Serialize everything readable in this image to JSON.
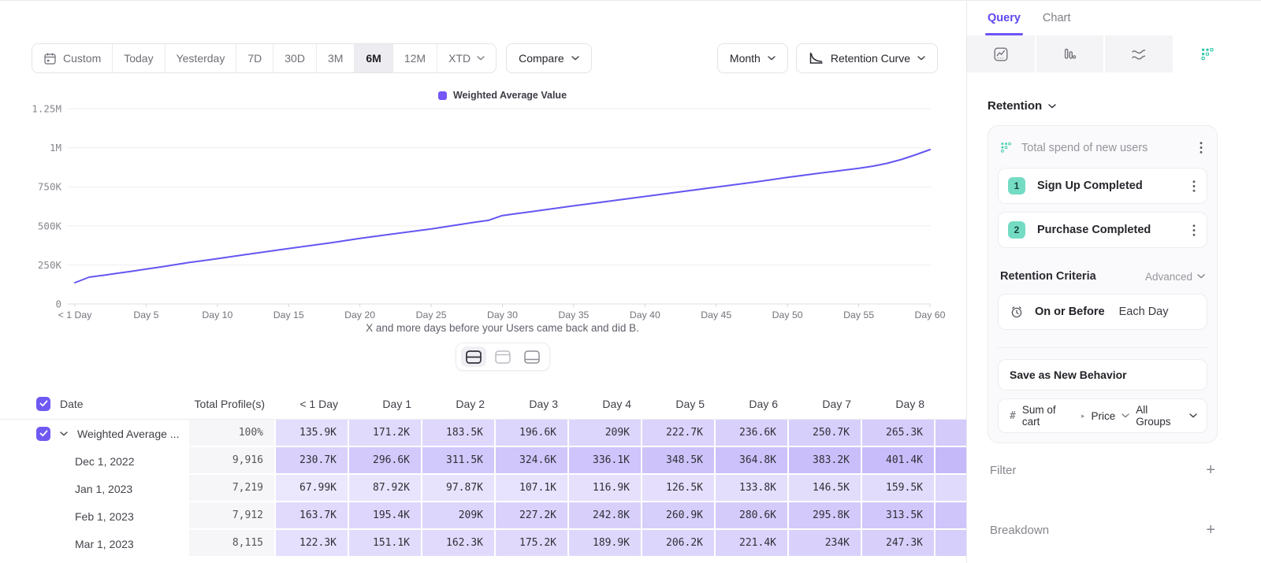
{
  "toolbar": {
    "ranges": [
      {
        "label": "Custom",
        "icon": "calendar"
      },
      {
        "label": "Today"
      },
      {
        "label": "Yesterday"
      },
      {
        "label": "7D"
      },
      {
        "label": "30D"
      },
      {
        "label": "3M"
      },
      {
        "label": "6M"
      },
      {
        "label": "12M"
      },
      {
        "label": "XTD",
        "chevron": true
      }
    ],
    "active_range": "6M",
    "compare_label": "Compare",
    "granularity_label": "Month",
    "chart_type_label": "Retention Curve"
  },
  "chart_data": {
    "type": "line",
    "legend": [
      "Weighted Average Value"
    ],
    "series_color": "#6456f2",
    "xlabel": "X and more days before your Users came back and did B.",
    "ylim": [
      0,
      1250000
    ],
    "grid": true,
    "y_ticks": [
      {
        "label": "1.25M",
        "value": 1250000
      },
      {
        "label": "1M",
        "value": 1000000
      },
      {
        "label": "750K",
        "value": 750000
      },
      {
        "label": "500K",
        "value": 500000
      },
      {
        "label": "250K",
        "value": 250000
      },
      {
        "label": "0",
        "value": 0
      }
    ],
    "x_ticks": [
      {
        "label": "< 1 Day",
        "day": 0
      },
      {
        "label": "Day 5",
        "day": 5
      },
      {
        "label": "Day 10",
        "day": 10
      },
      {
        "label": "Day 15",
        "day": 15
      },
      {
        "label": "Day 20",
        "day": 20
      },
      {
        "label": "Day 25",
        "day": 25
      },
      {
        "label": "Day 30",
        "day": 30
      },
      {
        "label": "Day 35",
        "day": 35
      },
      {
        "label": "Day 40",
        "day": 40
      },
      {
        "label": "Day 45",
        "day": 45
      },
      {
        "label": "Day 50",
        "day": 50
      },
      {
        "label": "Day 55",
        "day": 55
      },
      {
        "label": "Day 60",
        "day": 60
      }
    ],
    "points": [
      {
        "day": 0,
        "value": 135900
      },
      {
        "day": 1,
        "value": 171200
      },
      {
        "day": 2,
        "value": 183500
      },
      {
        "day": 3,
        "value": 196600
      },
      {
        "day": 4,
        "value": 209000
      },
      {
        "day": 5,
        "value": 222700
      },
      {
        "day": 6,
        "value": 236600
      },
      {
        "day": 7,
        "value": 250700
      },
      {
        "day": 8,
        "value": 265300
      },
      {
        "day": 10,
        "value": 290000
      },
      {
        "day": 12,
        "value": 316000
      },
      {
        "day": 15,
        "value": 355000
      },
      {
        "day": 18,
        "value": 392000
      },
      {
        "day": 20,
        "value": 420000
      },
      {
        "day": 22,
        "value": 444000
      },
      {
        "day": 25,
        "value": 480000
      },
      {
        "day": 28,
        "value": 522000
      },
      {
        "day": 29,
        "value": 535000
      },
      {
        "day": 30,
        "value": 566000
      },
      {
        "day": 31,
        "value": 578000
      },
      {
        "day": 32,
        "value": 590000
      },
      {
        "day": 35,
        "value": 628000
      },
      {
        "day": 38,
        "value": 664000
      },
      {
        "day": 40,
        "value": 688000
      },
      {
        "day": 42,
        "value": 712000
      },
      {
        "day": 45,
        "value": 748000
      },
      {
        "day": 48,
        "value": 784000
      },
      {
        "day": 50,
        "value": 810000
      },
      {
        "day": 52,
        "value": 834000
      },
      {
        "day": 55,
        "value": 868000
      },
      {
        "day": 56,
        "value": 882000
      },
      {
        "day": 57,
        "value": 900000
      },
      {
        "day": 58,
        "value": 925000
      },
      {
        "day": 59,
        "value": 955000
      },
      {
        "day": 60,
        "value": 988000
      }
    ]
  },
  "view_toggles": {
    "options": [
      "split-view",
      "top-pane-view",
      "bottom-pane-view"
    ],
    "active": "split-view"
  },
  "table": {
    "columns": [
      "Date",
      "Total Profile(s)",
      "< 1 Day",
      "Day 1",
      "Day 2",
      "Day 3",
      "Day 4",
      "Day 5",
      "Day 6",
      "Day 7",
      "Day 8"
    ],
    "rows": [
      {
        "label": "Weighted Average ...",
        "expandable": true,
        "checked": true,
        "total": "100%",
        "values": [
          "135.9K",
          "171.2K",
          "183.5K",
          "196.6K",
          "209K",
          "222.7K",
          "236.6K",
          "250.7K",
          "265.3K"
        ]
      },
      {
        "label": "Dec 1, 2022",
        "total": "9,916",
        "values": [
          "230.7K",
          "296.6K",
          "311.5K",
          "324.6K",
          "336.1K",
          "348.5K",
          "364.8K",
          "383.2K",
          "401.4K"
        ]
      },
      {
        "label": "Jan 1, 2023",
        "total": "7,219",
        "values": [
          "67.99K",
          "87.92K",
          "97.87K",
          "107.1K",
          "116.9K",
          "126.5K",
          "133.8K",
          "146.5K",
          "159.5K"
        ]
      },
      {
        "label": "Feb 1, 2023",
        "total": "7,912",
        "values": [
          "163.7K",
          "195.4K",
          "209K",
          "227.2K",
          "242.8K",
          "260.9K",
          "280.6K",
          "295.8K",
          "313.5K"
        ]
      },
      {
        "label": "Mar 1, 2023",
        "total": "8,115",
        "values": [
          "122.3K",
          "151.1K",
          "162.3K",
          "175.2K",
          "189.9K",
          "206.2K",
          "221.4K",
          "234K",
          "247.3K"
        ]
      }
    ]
  },
  "side_panel": {
    "tabs": [
      {
        "label": "Query",
        "active": true
      },
      {
        "label": "Chart",
        "active": false
      }
    ],
    "chart_type_tabs": {
      "options": [
        "insights",
        "bar-chart",
        "flows",
        "retention"
      ],
      "active": "retention"
    },
    "section_label": "Retention",
    "behavior": {
      "title": "Total spend of new users",
      "steps": [
        {
          "num": "1",
          "label": "Sign Up Completed"
        },
        {
          "num": "2",
          "label": "Purchase Completed"
        }
      ],
      "criteria_label": "Retention Criteria",
      "criteria_mode": "Advanced",
      "condition": "On or Before",
      "window": "Each Day",
      "save_label": "Save as New Behavior",
      "measure": {
        "prefix": "#",
        "property": "Sum of cart",
        "subproperty": "Price",
        "group": "All Groups"
      }
    },
    "filter_label": "Filter",
    "breakdown_label": "Breakdown"
  },
  "colors": {
    "accent_purple": "#6c55f5",
    "line_purple": "#6456f2",
    "cell_purple": "#7c60f3",
    "teal": "#2fc7a9",
    "badge_teal": "#74dcc3",
    "active_range_bg": "#ededf1",
    "total_col_bg": "#f6f6f8"
  }
}
